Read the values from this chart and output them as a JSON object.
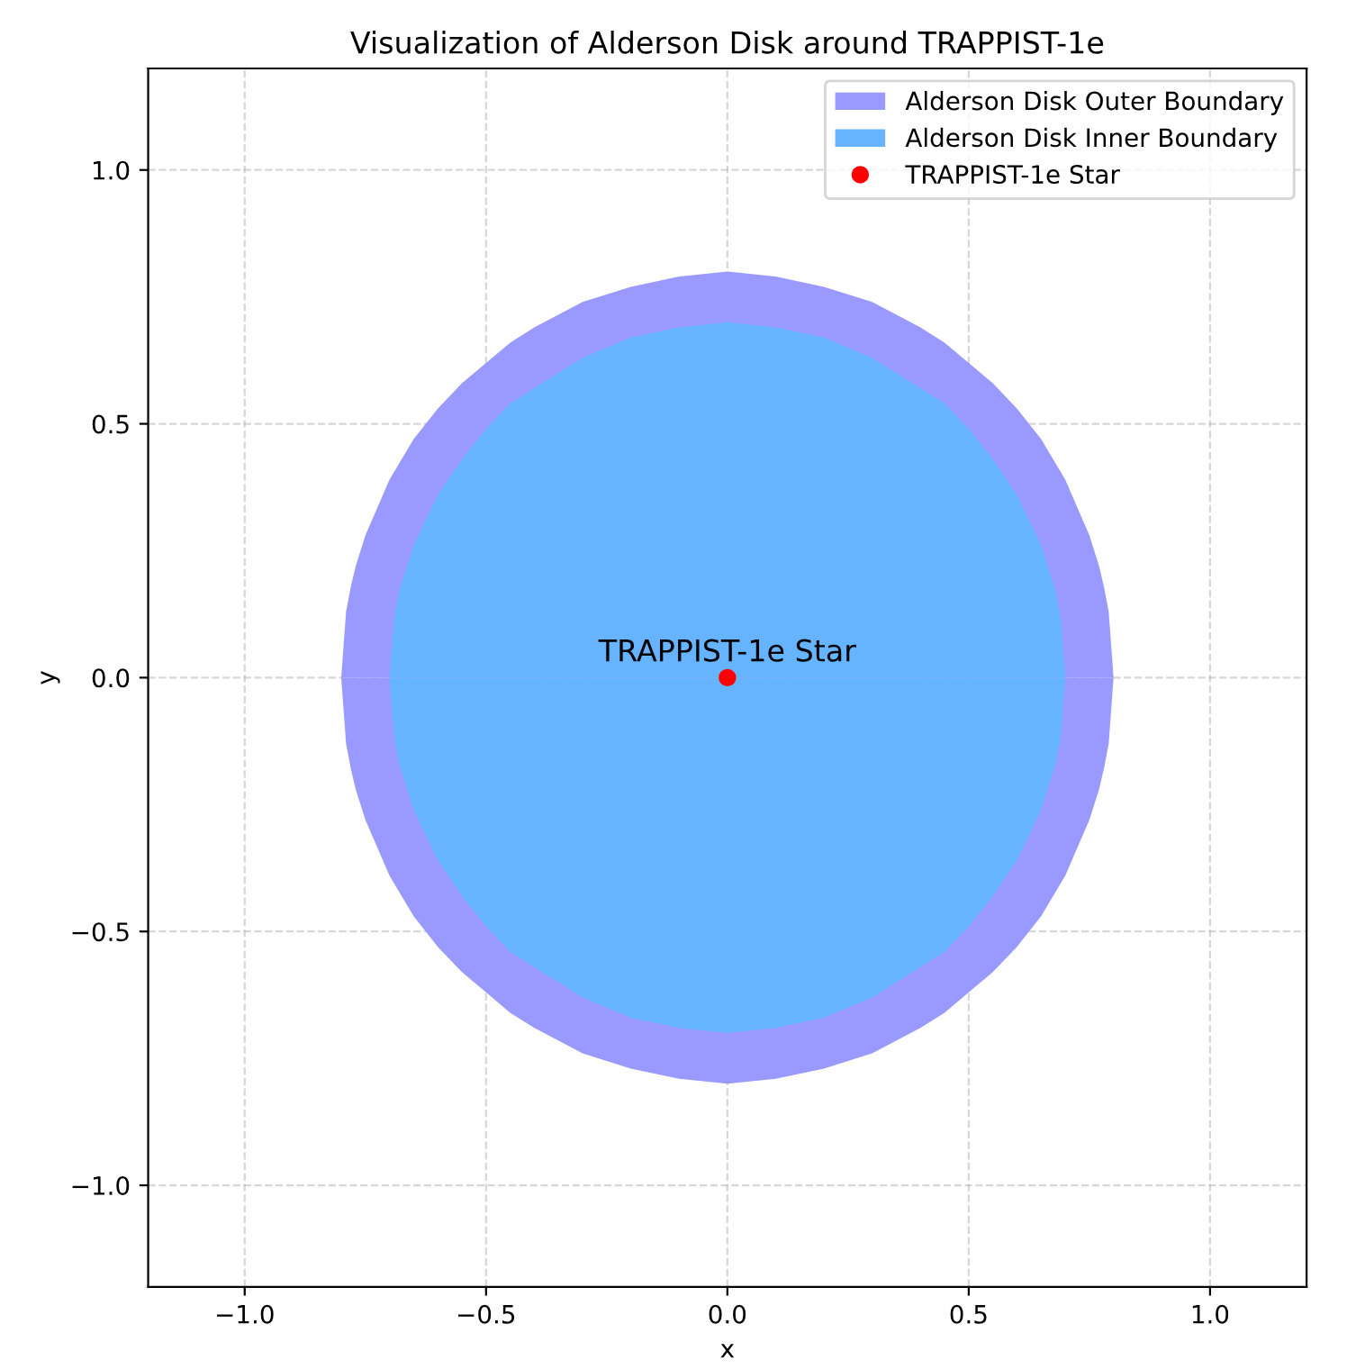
{
  "chart_data": {
    "type": "area",
    "title": "Visualization of Alderson Disk around TRAPPIST-1e",
    "xlabel": "x",
    "ylabel": "y",
    "series": [
      {
        "name": "Alderson Disk Outer Boundary",
        "color": "#9999ff",
        "x": [
          -0.8,
          -0.79,
          -0.78,
          -0.77,
          -0.75,
          -0.7,
          -0.65,
          -0.6,
          -0.55,
          -0.5,
          -0.45,
          -0.4,
          -0.3,
          -0.2,
          -0.1,
          0,
          0.1,
          0.2,
          0.3,
          0.4,
          0.45,
          0.5,
          0.55,
          0.6,
          0.65,
          0.7,
          0.75,
          0.77,
          0.78,
          0.79,
          0.8
        ],
        "values": [
          0,
          0.13,
          0.18,
          0.22,
          0.28,
          0.39,
          0.47,
          0.53,
          0.58,
          0.62,
          0.66,
          0.69,
          0.74,
          0.77,
          0.79,
          0.8,
          0.79,
          0.77,
          0.74,
          0.69,
          0.66,
          0.62,
          0.58,
          0.53,
          0.47,
          0.39,
          0.28,
          0.22,
          0.18,
          0.13,
          0
        ]
      },
      {
        "color": "#9999ff",
        "x": [
          -0.8,
          -0.79,
          -0.78,
          -0.77,
          -0.75,
          -0.7,
          -0.65,
          -0.6,
          -0.55,
          -0.5,
          -0.45,
          -0.4,
          -0.3,
          -0.2,
          -0.1,
          0,
          0.1,
          0.2,
          0.3,
          0.4,
          0.45,
          0.5,
          0.55,
          0.6,
          0.65,
          0.7,
          0.75,
          0.77,
          0.78,
          0.79,
          0.8
        ],
        "values": [
          0,
          -0.13,
          -0.18,
          -0.22,
          -0.28,
          -0.39,
          -0.47,
          -0.53,
          -0.58,
          -0.62,
          -0.66,
          -0.69,
          -0.74,
          -0.77,
          -0.79,
          -0.8,
          -0.79,
          -0.77,
          -0.74,
          -0.69,
          -0.66,
          -0.62,
          -0.58,
          -0.53,
          -0.47,
          -0.39,
          -0.28,
          -0.22,
          -0.18,
          -0.13,
          0
        ]
      },
      {
        "name": "Alderson Disk Inner Boundary",
        "color": "#66b3ff",
        "x": [
          -0.7,
          -0.69,
          -0.68,
          -0.65,
          -0.6,
          -0.55,
          -0.5,
          -0.45,
          -0.4,
          -0.3,
          -0.2,
          -0.1,
          0,
          0.1,
          0.2,
          0.3,
          0.4,
          0.45,
          0.5,
          0.55,
          0.6,
          0.65,
          0.68,
          0.69,
          0.7
        ],
        "values": [
          0,
          0.12,
          0.17,
          0.26,
          0.36,
          0.43,
          0.49,
          0.54,
          0.57,
          0.63,
          0.67,
          0.69,
          0.7,
          0.69,
          0.67,
          0.63,
          0.57,
          0.54,
          0.49,
          0.43,
          0.36,
          0.26,
          0.17,
          0.12,
          0
        ]
      },
      {
        "color": "#66b3ff",
        "x": [
          -0.7,
          -0.69,
          -0.68,
          -0.65,
          -0.6,
          -0.55,
          -0.5,
          -0.45,
          -0.4,
          -0.3,
          -0.2,
          -0.1,
          0,
          0.1,
          0.2,
          0.3,
          0.4,
          0.45,
          0.5,
          0.55,
          0.6,
          0.65,
          0.68,
          0.69,
          0.7
        ],
        "values": [
          0,
          -0.12,
          -0.17,
          -0.26,
          -0.36,
          -0.43,
          -0.49,
          -0.54,
          -0.57,
          -0.63,
          -0.67,
          -0.69,
          -0.7,
          -0.69,
          -0.67,
          -0.63,
          -0.57,
          -0.54,
          -0.49,
          -0.43,
          -0.36,
          -0.26,
          -0.17,
          -0.12,
          0
        ]
      },
      {
        "name": "TRAPPIST-1e Star",
        "type": "scatter",
        "marker": "circle",
        "color": "#ff0000",
        "x": [
          0
        ],
        "values": [
          0
        ]
      }
    ],
    "annotations": [
      {
        "text": "TRAPPIST-1e Star",
        "x": 0,
        "y": 0
      }
    ],
    "xlim": [
      -1.2,
      1.2
    ],
    "ylim": [
      -1.2,
      1.2
    ],
    "xticks": [
      {
        "value": -1.0,
        "label": "−1.0"
      },
      {
        "value": -0.5,
        "label": "−0.5"
      },
      {
        "value": 0.0,
        "label": "0.0"
      },
      {
        "value": 0.5,
        "label": "0.5"
      },
      {
        "value": 1.0,
        "label": "1.0"
      }
    ],
    "yticks": [
      {
        "value": -1.0,
        "label": "−1.0"
      },
      {
        "value": -0.5,
        "label": "−0.5"
      },
      {
        "value": 0.0,
        "label": "0.0"
      },
      {
        "value": 0.5,
        "label": "0.5"
      },
      {
        "value": 1.0,
        "label": "1.0"
      }
    ],
    "grid": true,
    "legend": "top right"
  }
}
